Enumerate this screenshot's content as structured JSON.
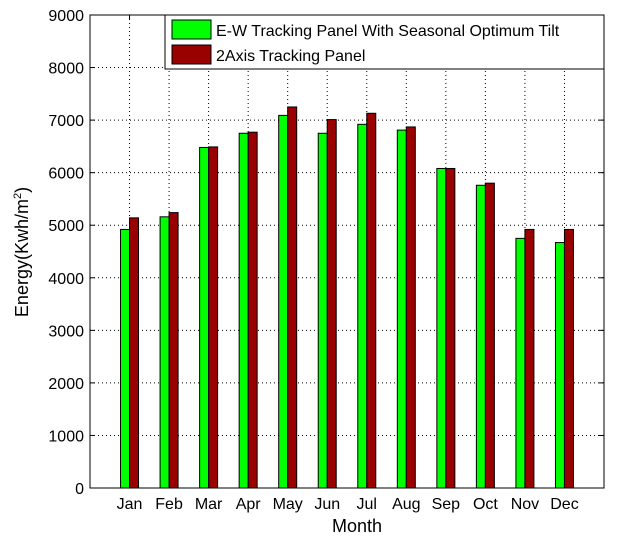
{
  "chart_data": {
    "type": "bar",
    "categories": [
      "Jan",
      "Feb",
      "Mar",
      "Apr",
      "May",
      "Jun",
      "Jul",
      "Aug",
      "Sep",
      "Oct",
      "Nov",
      "Dec"
    ],
    "series": [
      {
        "name": "E-W Tracking Panel With Seasonal Optimum Tilt",
        "color": "#00ff00",
        "values": [
          4920,
          5160,
          6480,
          6750,
          7090,
          6750,
          6920,
          6810,
          6080,
          5760,
          4750,
          4670
        ]
      },
      {
        "name": "2Axis Tracking Panel",
        "color": "#990000",
        "values": [
          5140,
          5240,
          6490,
          6770,
          7250,
          7010,
          7130,
          6870,
          6080,
          5800,
          4920,
          4920
        ]
      }
    ],
    "xlabel": "Month",
    "ylabel": "Energy(Kwh/m",
    "ylabel_superscript": "2",
    "ylabel_suffix": ")",
    "ylim": [
      0,
      9000
    ],
    "yticks": [
      0,
      1000,
      2000,
      3000,
      4000,
      5000,
      6000,
      7000,
      8000,
      9000
    ],
    "grid": true,
    "legend_position": "top-right"
  }
}
